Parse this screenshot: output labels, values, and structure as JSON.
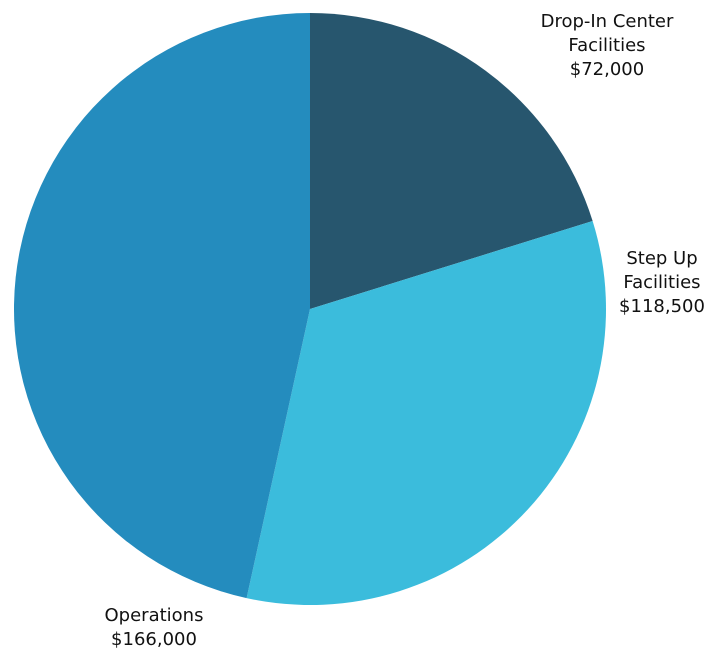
{
  "chart_data": {
    "type": "pie",
    "title": "",
    "start_angle_deg": 0,
    "direction": "clockwise",
    "slices": [
      {
        "label_lines": [
          "Drop-In Center",
          "Facilities",
          "$72,000"
        ],
        "value": 72000,
        "color": "#27566E"
      },
      {
        "label_lines": [
          "Step Up",
          "Facilities",
          "$118,500"
        ],
        "value": 118500,
        "color": "#3BBCDC"
      },
      {
        "label_lines": [
          "Operations",
          "$166,000"
        ],
        "value": 166000,
        "color": "#248CBE"
      }
    ]
  }
}
